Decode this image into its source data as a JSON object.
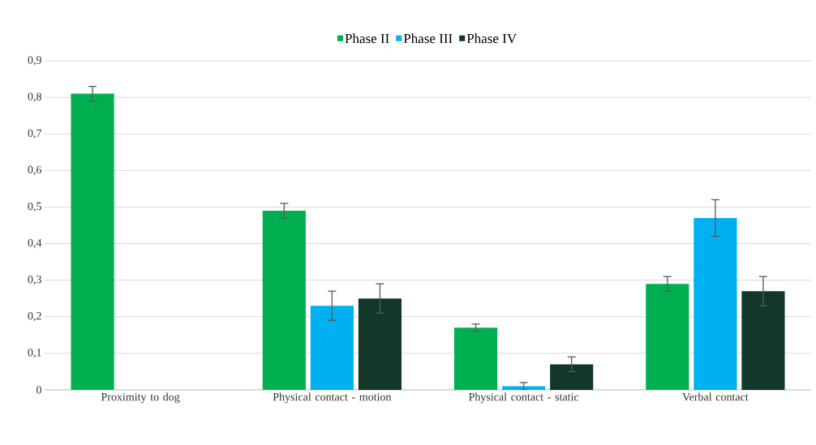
{
  "chart_data": {
    "type": "bar",
    "categories": [
      "Proximity to dog",
      "Physical contact - motion",
      "Physical contact - static",
      "Verbal contact"
    ],
    "series": [
      {
        "name": "Phase II",
        "color": "#00b050",
        "values": [
          0.81,
          0.49,
          0.17,
          0.29
        ],
        "errors": [
          0.02,
          0.02,
          0.01,
          0.02
        ]
      },
      {
        "name": "Phase III",
        "color": "#00b0f0",
        "values": [
          null,
          0.23,
          0.01,
          0.47
        ],
        "errors": [
          null,
          0.04,
          0.01,
          0.05
        ]
      },
      {
        "name": "Phase IV",
        "color": "#12372a",
        "values": [
          null,
          0.25,
          0.07,
          0.27
        ],
        "errors": [
          null,
          0.04,
          0.02,
          0.04
        ]
      }
    ],
    "ylim": [
      0,
      0.9
    ],
    "yticks": [
      0,
      {
        "value": 0.1,
        "label": "0,1"
      },
      {
        "value": 0.2,
        "label": "0,2"
      },
      {
        "value": 0.3,
        "label": "0,3"
      },
      {
        "value": 0.4,
        "label": "0,4"
      },
      {
        "value": 0.5,
        "label": "0,5"
      },
      {
        "value": 0.6,
        "label": "0,6"
      },
      {
        "value": 0.7,
        "label": "0,7"
      },
      {
        "value": 0.8,
        "label": "0,8"
      },
      {
        "value": 0.9,
        "label": "0,9"
      }
    ],
    "grid": "y",
    "legend": "top"
  }
}
